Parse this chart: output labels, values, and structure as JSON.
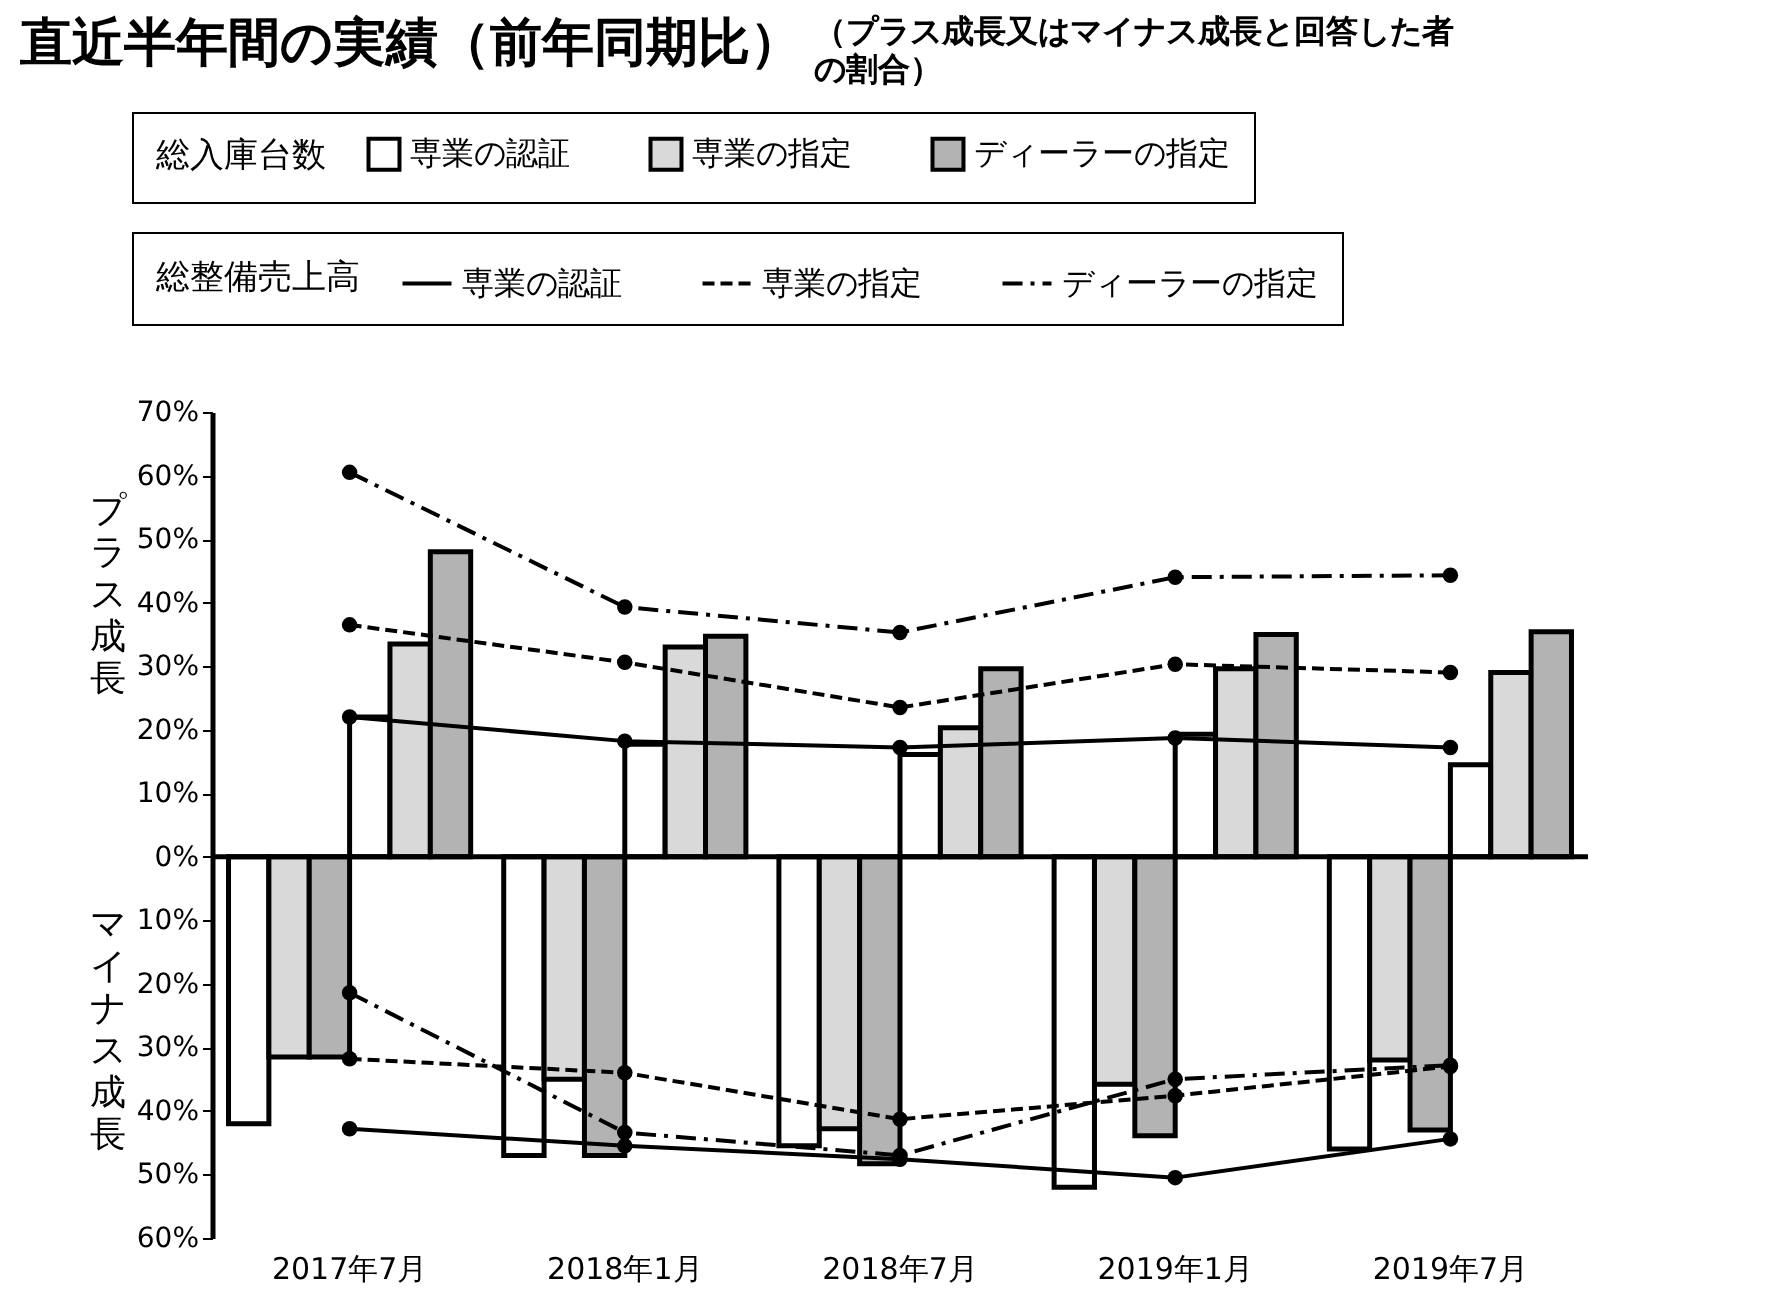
{
  "chart_data": {
    "type": "bar",
    "title": "直近半年間の実績（前年同期比）",
    "subtitle": "（プラス成長又はマイナス成長と回答した者の割合）",
    "annotations": [
      "総入庫台数",
      "総整備売上高",
      "プラス成長",
      "マイナス成長"
    ],
    "categories": [
      "2017年7月",
      "2018年1月",
      "2018年7月",
      "2019年1月",
      "2019年7月"
    ],
    "series": [
      {
        "color": "#ffffff",
        "values": [
          -42,
          -47,
          -45.5,
          -52,
          -46
        ]
      },
      {
        "color": "#d9d9d9",
        "values": [
          -31.5,
          -35,
          -42.8,
          -35.8,
          -32
        ]
      },
      {
        "color": "#b3b3b3",
        "values": [
          -31.5,
          -47,
          -48.3,
          -43.9,
          -43
        ]
      },
      {
        "name": "専業の認証",
        "color": "#ffffff",
        "values": [
          22,
          17.7,
          16.1,
          19.3,
          14.5
        ]
      },
      {
        "name": "専業の指定",
        "color": "#d9d9d9",
        "values": [
          33.5,
          33,
          20.3,
          29.6,
          29
        ]
      },
      {
        "name": "ディーラーの指定",
        "color": "#b3b3b3",
        "values": [
          48,
          34.7,
          29.6,
          35,
          35.4
        ]
      },
      {
        "type": "line",
        "name": "専業の認証",
        "color": "#000000",
        "line_style": "solid",
        "values": [
          22,
          18.2,
          17.2,
          18.7,
          17.2
        ]
      },
      {
        "type": "line",
        "name": "専業の指定",
        "color": "#000000",
        "line_style": "dashed",
        "values": [
          36.5,
          30.6,
          23.5,
          30.3,
          29
        ]
      },
      {
        "type": "line",
        "name": "ディーラーの指定",
        "color": "#000000",
        "line_style": "dotted",
        "values": [
          60.5,
          39.3,
          35.3,
          44,
          44.3
        ]
      },
      {
        "type": "line",
        "color": "#000000",
        "line_style": "solid",
        "values": [
          -42.8,
          -45.5,
          -47.6,
          -50.5,
          -44.4
        ]
      },
      {
        "type": "line",
        "color": "#000000",
        "line_style": "dashed",
        "values": [
          -31.8,
          -34,
          -41.3,
          -37.6,
          -33
        ]
      },
      {
        "type": "line",
        "color": "#000000",
        "line_style": "dotted",
        "values": [
          -21.4,
          -43.4,
          -47,
          -35,
          -32.8
        ]
      }
    ],
    "ylim": [
      -60,
      70
    ],
    "yticks": [
      {
        "value": -60,
        "label": "60%"
      },
      {
        "value": -50,
        "label": "50%"
      },
      {
        "value": -40,
        "label": "40%"
      },
      {
        "value": -30,
        "label": "30%"
      },
      {
        "value": -20,
        "label": "20%"
      },
      {
        "value": -10,
        "label": "10%"
      },
      {
        "value": 0,
        "label": "0%"
      },
      {
        "value": 10,
        "label": "10%"
      },
      {
        "value": 20,
        "label": "20%"
      },
      {
        "value": 30,
        "label": "30%"
      },
      {
        "value": 40,
        "label": "40%"
      },
      {
        "value": 50,
        "label": "50%"
      },
      {
        "value": 60,
        "label": "60%"
      },
      {
        "value": 70,
        "label": "70%"
      }
    ],
    "ref_lines": [
      {
        "axis": "y",
        "value": 0,
        "color": "#000000"
      }
    ],
    "grid": false,
    "legend": "top",
    "marker": "circle"
  }
}
